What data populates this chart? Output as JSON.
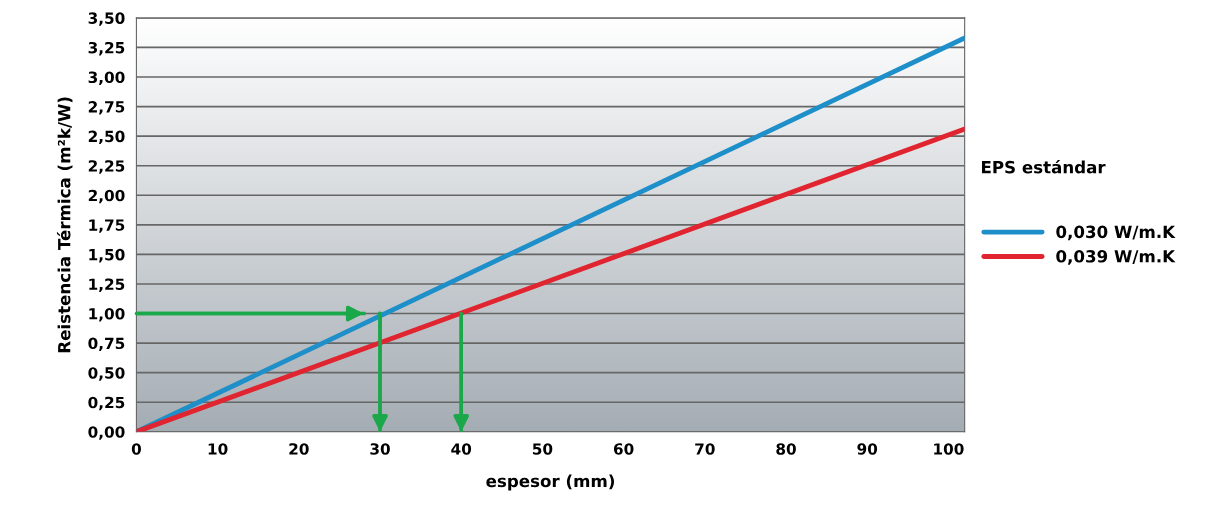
{
  "chart_data": {
    "type": "line",
    "xlabel": "espesor (mm)",
    "ylabel": "Reistencia Térmica (m²k/W)",
    "xlim": [
      0,
      102
    ],
    "xticks": [
      0,
      10,
      20,
      30,
      40,
      50,
      60,
      70,
      80,
      90,
      100
    ],
    "ylim": [
      0,
      3.5
    ],
    "yticks": [
      {
        "value": 0,
        "label": "0,00"
      },
      {
        "value": 0.25,
        "label": "0,25"
      },
      {
        "value": 0.5,
        "label": "0,50"
      },
      {
        "value": 0.75,
        "label": "0,75"
      },
      {
        "value": 1.0,
        "label": "1,00"
      },
      {
        "value": 1.25,
        "label": "1,25"
      },
      {
        "value": 1.5,
        "label": "1,50"
      },
      {
        "value": 1.75,
        "label": "1,75"
      },
      {
        "value": 2.0,
        "label": "2,00"
      },
      {
        "value": 2.25,
        "label": "2,25"
      },
      {
        "value": 2.5,
        "label": "2,50"
      },
      {
        "value": 2.75,
        "label": "2,75"
      },
      {
        "value": 3.0,
        "label": "3,00"
      },
      {
        "value": 3.25,
        "label": "3,25"
      },
      {
        "value": 3.5,
        "label": "3,50"
      }
    ],
    "grid": "y",
    "legend": "right",
    "annotations": [
      "EPS estándar"
    ],
    "series": [
      {
        "name": "0,030 W/m.K",
        "color": "#1e8fc8",
        "x": [
          0,
          102
        ],
        "values": [
          0,
          3.33
        ]
      },
      {
        "name": "0,039 W/m.K",
        "color": "#e02530",
        "x": [
          0,
          102
        ],
        "values": [
          0,
          2.56
        ]
      },
      {
        "color": "#1aa84a",
        "x": [
          0,
          28
        ],
        "values": [
          1.0,
          1.0
        ]
      },
      {
        "color": "#1aa84a",
        "x": [
          30,
          30
        ],
        "values": [
          1.0,
          0
        ]
      },
      {
        "color": "#1aa84a",
        "x": [
          40,
          40
        ],
        "values": [
          1.0,
          0
        ]
      }
    ]
  }
}
